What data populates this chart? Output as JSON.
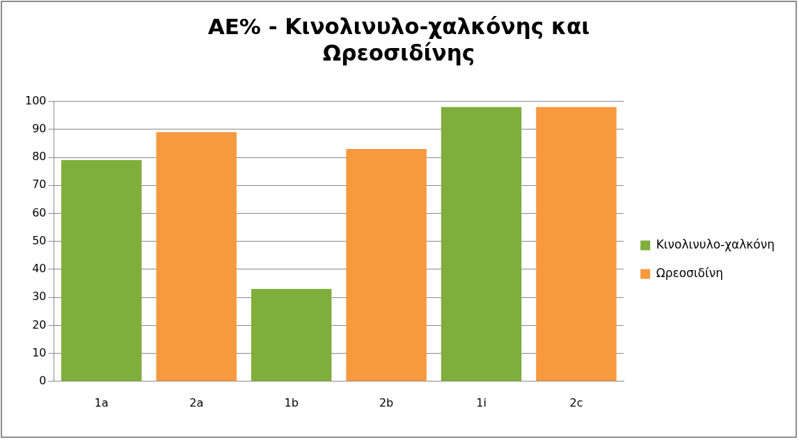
{
  "chart_data": {
    "type": "bar",
    "title": "AE% - Κινολινυλο-χαλκόνης και Ωρεοσιδίνης",
    "categories": [
      "1a",
      "2a",
      "1b",
      "2b",
      "1i",
      "2c"
    ],
    "series": [
      {
        "name": "Κινολινυλο-χαλκόνη",
        "color": "#7fae3c",
        "values": [
          79,
          null,
          33,
          null,
          98,
          null
        ]
      },
      {
        "name": "Ωρεοσιδίνη",
        "color": "#f7993f",
        "values": [
          null,
          89,
          null,
          83,
          null,
          98
        ]
      }
    ],
    "ylim": [
      0,
      100
    ],
    "yticks": [
      0,
      10,
      20,
      30,
      40,
      50,
      60,
      70,
      80,
      90,
      100
    ],
    "grid": "y",
    "legend": "right"
  }
}
